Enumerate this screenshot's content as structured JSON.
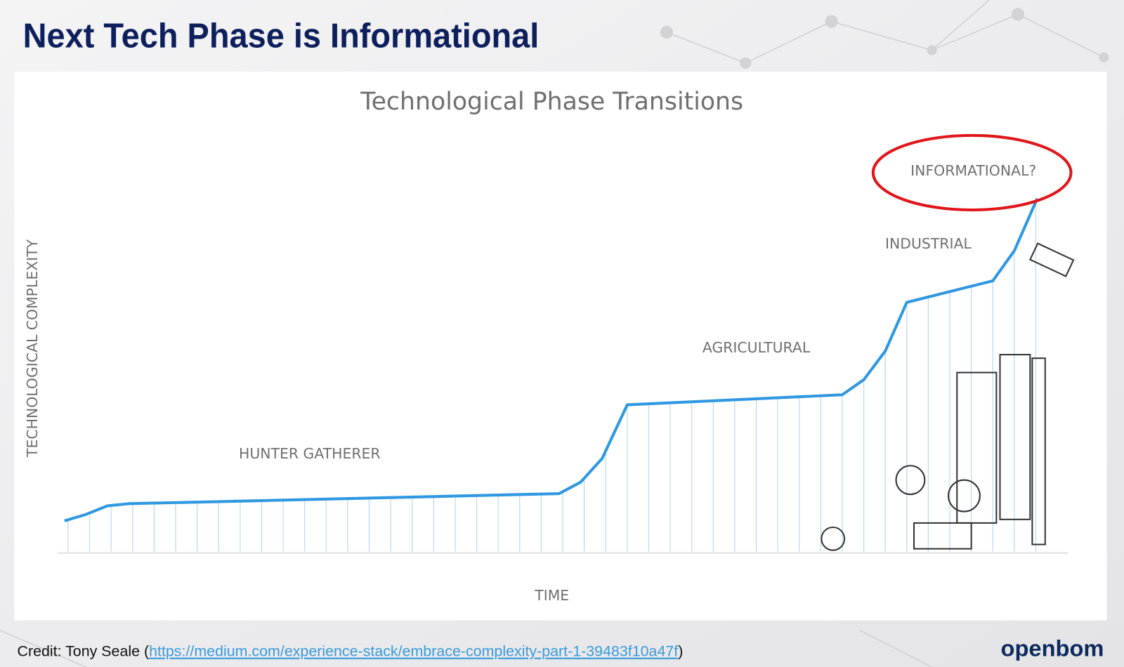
{
  "header": {
    "title": "Next Tech Phase is Informational"
  },
  "chart": {
    "title": "Technological Phase Transitions",
    "y_label": "TECHNOLOGICAL COMPLEXITY",
    "x_label": "TIME",
    "phases": [
      "HUNTER GATHERER",
      "AGRICULTURAL",
      "INDUSTRIAL",
      "INFORMATIONAL?"
    ]
  },
  "footer": {
    "credit_prefix": "Credit: Tony Seale (",
    "credit_link": "https://medium.com/experience-stack/embrace-complexity-part-1-39483f10a47f",
    "credit_suffix": ")",
    "logo": "openbom"
  }
}
